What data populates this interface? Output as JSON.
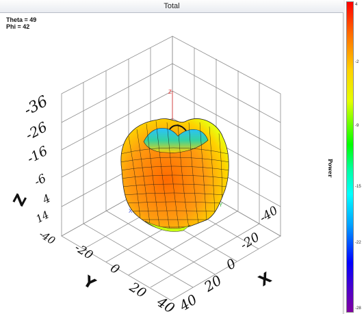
{
  "window": {
    "title": "Total"
  },
  "view": {
    "theta_label": "Theta = 49",
    "phi_label": "Phi = 42"
  },
  "colorbar": {
    "label": "Power",
    "ticks": [
      "4",
      "-2",
      "-9",
      "-15",
      "-22",
      "-28"
    ],
    "tick_values": [
      4,
      -2,
      -9,
      -15,
      -22,
      -28
    ]
  },
  "axes": {
    "z_name": "Z",
    "y_name": "Y",
    "x_name": "X",
    "z_ticks": [
      "-36",
      "-26",
      "-16",
      "-6",
      "4",
      "14"
    ],
    "y_ticks": [
      "-40",
      "-20",
      "0",
      "20",
      "40"
    ],
    "x_ticks": [
      "-40",
      "-20",
      "0",
      "20",
      "40"
    ],
    "origin_axis_labels": {
      "z": "Z",
      "x": "X",
      "y": "Y"
    }
  },
  "colors": {
    "surface_hot": "#ff8a1a",
    "surface_warm": "#ffd400",
    "surface_cool": "#33c7ff",
    "grid": "#8a8a8a",
    "mesh": "#1a1a1a"
  }
}
